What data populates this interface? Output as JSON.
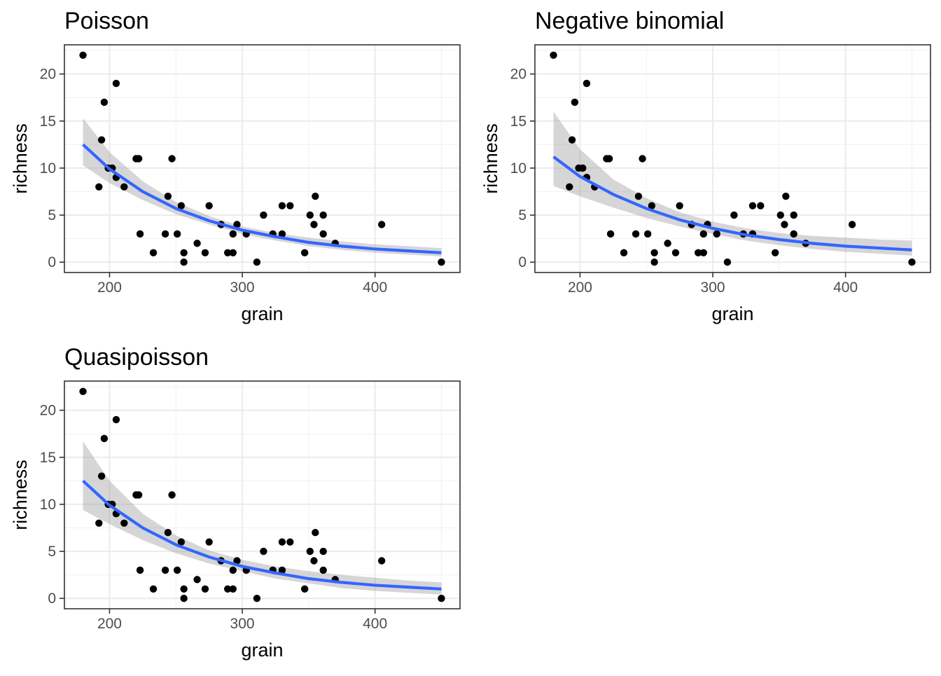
{
  "chart_data": [
    {
      "type": "scatter",
      "title": "Poisson",
      "xlabel": "grain",
      "ylabel": "richness",
      "xlim": [
        166,
        464
      ],
      "ylim": [
        -1.1,
        23.1
      ],
      "xticks": [
        200,
        300,
        400
      ],
      "yticks": [
        0,
        5,
        10,
        15,
        20
      ],
      "tick_labels_x": [
        "200",
        "300",
        "400"
      ],
      "tick_labels_y": [
        "0",
        "5",
        "10",
        "15",
        "20"
      ],
      "grid": true,
      "points": {
        "x": [
          180,
          192,
          194,
          196,
          199,
          202,
          205,
          205,
          211,
          220,
          222,
          223,
          233,
          242,
          244,
          247,
          251,
          254,
          256,
          256,
          266,
          272,
          275,
          284,
          289,
          293,
          293,
          296,
          303,
          311,
          316,
          323,
          330,
          330,
          336,
          347,
          351,
          354,
          355,
          361,
          361,
          370,
          405,
          450
        ],
        "y": [
          22,
          8,
          13,
          17,
          10,
          10,
          9,
          19,
          8,
          11,
          11,
          3,
          1,
          3,
          7,
          11,
          3,
          6,
          1,
          0,
          2,
          1,
          6,
          4,
          1,
          3,
          1,
          4,
          3,
          0,
          5,
          3,
          6,
          3,
          6,
          1,
          5,
          4,
          7,
          3,
          5,
          2,
          4,
          0
        ]
      },
      "fit": {
        "x": [
          180,
          200,
          225,
          250,
          275,
          300,
          325,
          350,
          375,
          400,
          425,
          450
        ],
        "y": [
          12.5,
          9.9,
          7.5,
          5.7,
          4.4,
          3.4,
          2.7,
          2.1,
          1.7,
          1.4,
          1.2,
          1.0
        ],
        "lower": [
          10.3,
          8.4,
          6.6,
          5.1,
          4.0,
          3.0,
          2.3,
          1.7,
          1.3,
          1.0,
          0.8,
          0.6
        ],
        "upper": [
          15.3,
          11.7,
          8.6,
          6.4,
          4.9,
          3.8,
          3.1,
          2.6,
          2.2,
          1.9,
          1.7,
          1.5
        ]
      },
      "colors": {
        "points": "#000000",
        "line": "#3366ff",
        "ribbon": "#999999"
      }
    },
    {
      "type": "scatter",
      "title": "Negative binomial",
      "xlabel": "grain",
      "ylabel": "richness",
      "xlim": [
        166,
        464
      ],
      "ylim": [
        -1.1,
        23.1
      ],
      "xticks": [
        200,
        300,
        400
      ],
      "yticks": [
        0,
        5,
        10,
        15,
        20
      ],
      "tick_labels_x": [
        "200",
        "300",
        "400"
      ],
      "tick_labels_y": [
        "0",
        "5",
        "10",
        "15",
        "20"
      ],
      "grid": true,
      "points": {
        "x": [
          180,
          192,
          194,
          196,
          199,
          202,
          205,
          205,
          211,
          220,
          222,
          223,
          233,
          242,
          244,
          247,
          251,
          254,
          256,
          256,
          266,
          272,
          275,
          284,
          289,
          293,
          293,
          296,
          303,
          311,
          316,
          323,
          330,
          330,
          336,
          347,
          351,
          354,
          355,
          361,
          361,
          370,
          405,
          450
        ],
        "y": [
          22,
          8,
          13,
          17,
          10,
          10,
          9,
          19,
          8,
          11,
          11,
          3,
          1,
          3,
          7,
          11,
          3,
          6,
          1,
          0,
          2,
          1,
          6,
          4,
          1,
          3,
          1,
          4,
          3,
          0,
          5,
          3,
          6,
          3,
          6,
          1,
          5,
          4,
          7,
          3,
          5,
          2,
          4,
          0
        ]
      },
      "fit": {
        "x": [
          180,
          200,
          225,
          250,
          275,
          300,
          325,
          350,
          375,
          400,
          425,
          450
        ],
        "y": [
          11.2,
          9.1,
          7.2,
          5.7,
          4.5,
          3.6,
          2.9,
          2.4,
          2.0,
          1.7,
          1.5,
          1.3
        ],
        "lower": [
          8.1,
          7.0,
          5.8,
          4.7,
          3.8,
          3.0,
          2.3,
          1.8,
          1.4,
          1.1,
          0.9,
          0.7
        ],
        "upper": [
          16.0,
          12.0,
          8.8,
          6.8,
          5.3,
          4.3,
          3.6,
          3.1,
          2.8,
          2.6,
          2.4,
          2.3
        ]
      },
      "colors": {
        "points": "#000000",
        "line": "#3366ff",
        "ribbon": "#999999"
      }
    },
    {
      "type": "scatter",
      "title": "Quasipoisson",
      "xlabel": "grain",
      "ylabel": "richness",
      "xlim": [
        166,
        464
      ],
      "ylim": [
        -1.1,
        23.1
      ],
      "xticks": [
        200,
        300,
        400
      ],
      "yticks": [
        0,
        5,
        10,
        15,
        20
      ],
      "tick_labels_x": [
        "200",
        "300",
        "400"
      ],
      "tick_labels_y": [
        "0",
        "5",
        "10",
        "15",
        "20"
      ],
      "grid": true,
      "points": {
        "x": [
          180,
          192,
          194,
          196,
          199,
          202,
          205,
          205,
          211,
          220,
          222,
          223,
          233,
          242,
          244,
          247,
          251,
          254,
          256,
          256,
          266,
          272,
          275,
          284,
          289,
          293,
          293,
          296,
          303,
          311,
          316,
          323,
          330,
          330,
          336,
          347,
          351,
          354,
          355,
          361,
          361,
          370,
          405,
          450
        ],
        "y": [
          22,
          8,
          13,
          17,
          10,
          10,
          9,
          19,
          8,
          11,
          11,
          3,
          1,
          3,
          7,
          11,
          3,
          6,
          1,
          0,
          2,
          1,
          6,
          4,
          1,
          3,
          1,
          4,
          3,
          0,
          5,
          3,
          6,
          3,
          6,
          1,
          5,
          4,
          7,
          3,
          5,
          2,
          4,
          0
        ]
      },
      "fit": {
        "x": [
          180,
          200,
          225,
          250,
          275,
          300,
          325,
          350,
          375,
          400,
          425,
          450
        ],
        "y": [
          12.5,
          9.9,
          7.5,
          5.7,
          4.4,
          3.4,
          2.7,
          2.1,
          1.7,
          1.4,
          1.2,
          1.0
        ],
        "lower": [
          9.4,
          7.9,
          6.2,
          4.8,
          3.7,
          2.9,
          2.1,
          1.6,
          1.1,
          0.8,
          0.6,
          0.4
        ],
        "upper": [
          16.7,
          12.5,
          9.0,
          6.7,
          5.1,
          4.1,
          3.4,
          2.9,
          2.5,
          2.2,
          1.9,
          1.7
        ]
      },
      "colors": {
        "points": "#000000",
        "line": "#3366ff",
        "ribbon": "#999999"
      }
    }
  ]
}
